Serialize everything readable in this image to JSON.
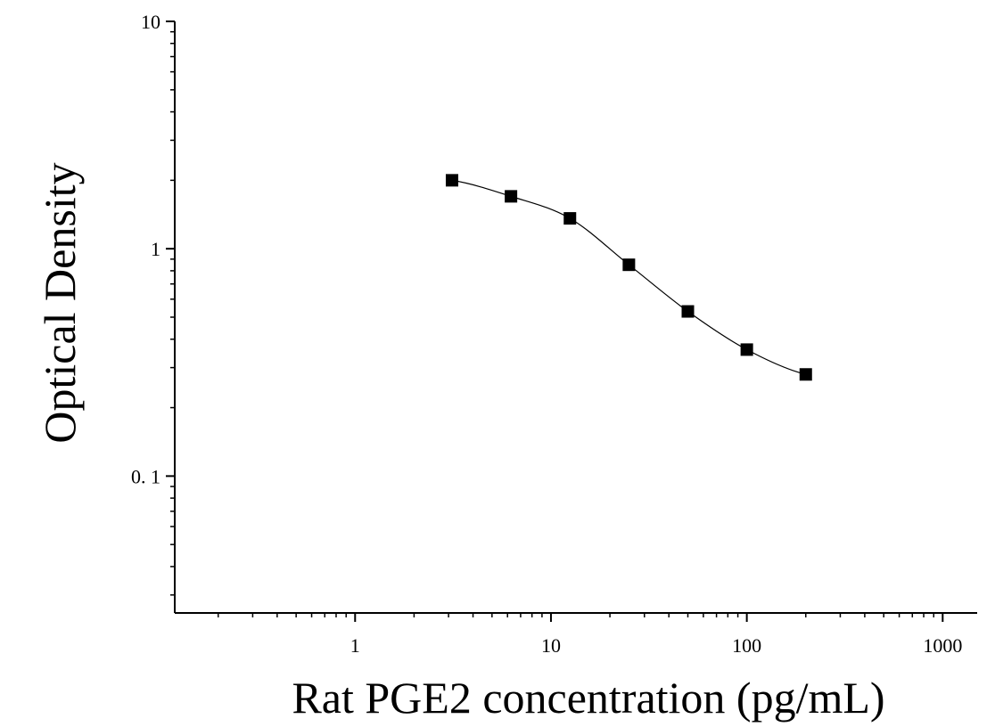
{
  "chart_data": {
    "type": "scatter",
    "title": "",
    "xlabel": "Rat PGE2 concentration (pg/mL)",
    "ylabel": "Optical Density",
    "xscale": "log",
    "yscale": "log",
    "xlim": [
      0.12,
      1500
    ],
    "ylim": [
      0.025,
      10
    ],
    "xticks": [
      {
        "value": 1,
        "label": "1"
      },
      {
        "value": 10,
        "label": "10"
      },
      {
        "value": 100,
        "label": "100"
      },
      {
        "value": 1000,
        "label": "1000"
      }
    ],
    "yticks": [
      {
        "value": 0.1,
        "label": "0. 1"
      },
      {
        "value": 1,
        "label": "1"
      },
      {
        "value": 10,
        "label": "10"
      }
    ],
    "grid": false,
    "marker": "square",
    "color": "#000000",
    "series": [
      {
        "x": [
          3.125,
          6.25,
          12.5,
          25,
          50,
          100,
          200
        ],
        "y": [
          2.0,
          1.7,
          1.36,
          0.85,
          0.53,
          0.36,
          0.28
        ]
      }
    ],
    "fit_curve": "four-parameter logistic"
  }
}
